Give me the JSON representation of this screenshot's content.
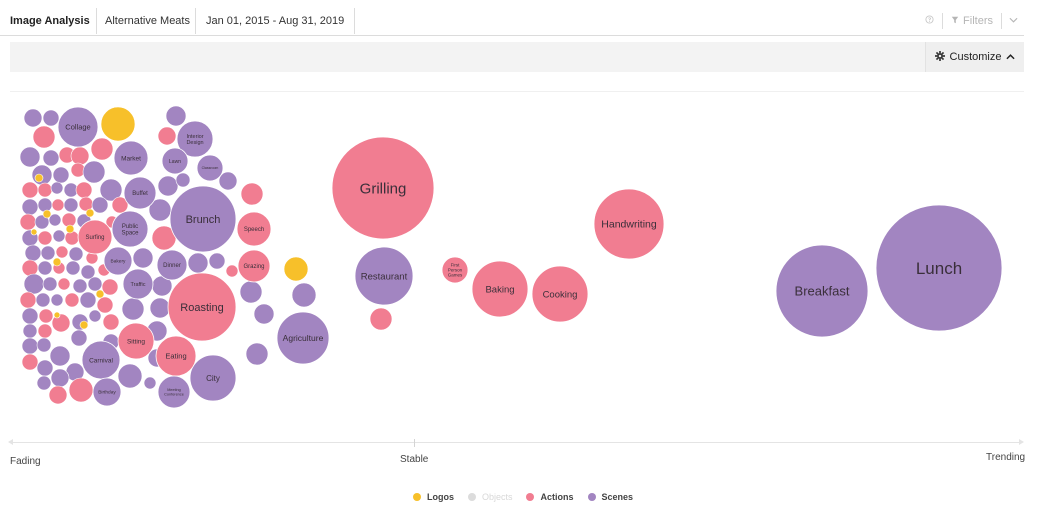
{
  "tabs": [
    {
      "label": "Image Analysis"
    },
    {
      "label": "Alternative Meats"
    },
    {
      "label": "Jan 01, 2015 - Aug 31, 2019"
    }
  ],
  "toolbar": {
    "filters_label": "Filters",
    "help_icon": "help-circle-icon",
    "filter_icon": "funnel-icon",
    "more_icon": "chevron-down-icon",
    "customize_label": "Customize",
    "customize_icon": "gear-icon",
    "customize_caret_icon": "chevron-up-icon"
  },
  "axis": {
    "left_label": "Fading",
    "center_label": "Stable",
    "right_label": "Trending"
  },
  "legend": [
    {
      "label": "Logos",
      "color": "#f7c02a",
      "active": true
    },
    {
      "label": "Objects",
      "color": "#dcdcdc",
      "active": false
    },
    {
      "label": "Actions",
      "color": "#f17d91",
      "active": true
    },
    {
      "label": "Scenes",
      "color": "#a285c1",
      "active": true
    }
  ],
  "colors": {
    "logos": "#f7c02a",
    "actions": "#f17d91",
    "scenes": "#a285c1"
  },
  "bubbles": [
    {
      "label": "Lunch",
      "category": "scenes"
    },
    {
      "label": "Breakfast",
      "category": "scenes"
    },
    {
      "label": "Grilling",
      "category": "actions"
    },
    {
      "label": "Handwriting",
      "category": "actions"
    },
    {
      "label": "Restaurant",
      "category": "scenes"
    },
    {
      "label": "First Person Games",
      "category": "actions"
    },
    {
      "label": "Baking",
      "category": "actions"
    },
    {
      "label": "Cooking",
      "category": "actions"
    },
    {
      "label": "Agriculture",
      "category": "scenes"
    },
    {
      "label": "Roasting",
      "category": "actions"
    },
    {
      "label": "Brunch",
      "category": "scenes"
    },
    {
      "label": "City",
      "category": "scenes"
    },
    {
      "label": "Eating",
      "category": "actions"
    },
    {
      "label": "Meeting Conference",
      "category": "scenes"
    },
    {
      "label": "Speech",
      "category": "actions"
    },
    {
      "label": "Grazing",
      "category": "actions"
    },
    {
      "label": "Dinner",
      "category": "scenes"
    },
    {
      "label": "Collage",
      "category": "scenes"
    },
    {
      "label": "Interior Design",
      "category": "scenes"
    },
    {
      "label": "Market",
      "category": "scenes"
    },
    {
      "label": "Lawn",
      "category": "scenes"
    },
    {
      "label": "Classroom",
      "category": "scenes"
    },
    {
      "label": "Buffet",
      "category": "scenes"
    },
    {
      "label": "Public Space",
      "category": "scenes"
    },
    {
      "label": "Surfing",
      "category": "actions"
    },
    {
      "label": "Bakery",
      "category": "scenes"
    },
    {
      "label": "Traffic",
      "category": "scenes"
    },
    {
      "label": "Sitting",
      "category": "actions"
    },
    {
      "label": "Carnival",
      "category": "scenes"
    },
    {
      "label": "Birthday",
      "category": "scenes"
    }
  ]
}
